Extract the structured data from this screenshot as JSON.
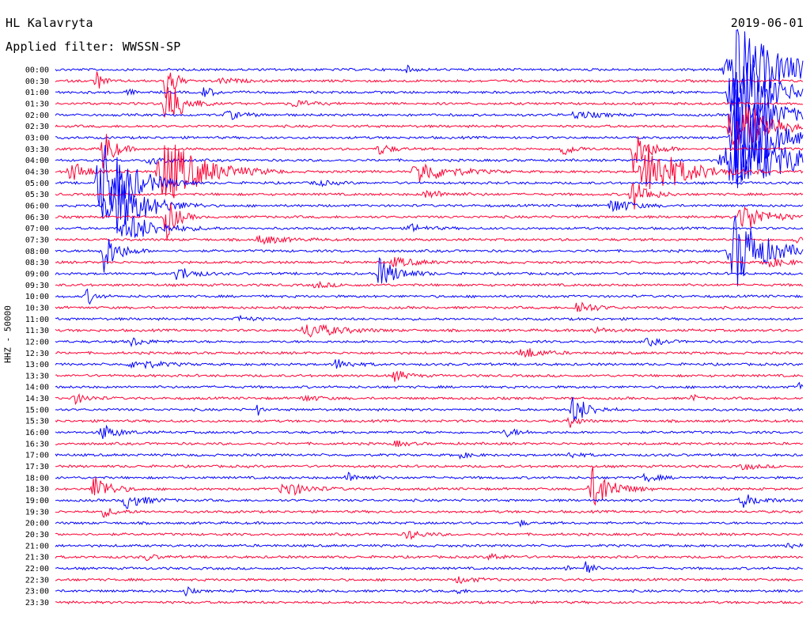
{
  "header": {
    "station": "HL Kalavryta",
    "filter": "Applied filter: WWSSN-SP",
    "date": "2019-06-01"
  },
  "channel_label": "HHZ - 50000",
  "colors": {
    "even": "#0000ff",
    "odd": "#ff0033"
  },
  "chart_data": {
    "type": "line",
    "title": "HL Kalavryta",
    "subtitle": "Applied filter: WWSSN-SP",
    "ylabel": "HHZ - 50000",
    "row_labels": [
      "00:00",
      "00:30",
      "01:00",
      "01:30",
      "02:00",
      "02:30",
      "03:00",
      "03:30",
      "04:00",
      "04:30",
      "05:00",
      "05:30",
      "06:00",
      "06:30",
      "07:00",
      "07:30",
      "08:00",
      "08:30",
      "09:00",
      "09:30",
      "10:00",
      "10:30",
      "11:00",
      "11:30",
      "12:00",
      "12:30",
      "13:00",
      "13:30",
      "14:00",
      "14:30",
      "15:00",
      "15:30",
      "16:00",
      "16:30",
      "17:00",
      "17:30",
      "18:00",
      "18:30",
      "19:00",
      "19:30",
      "20:00",
      "20:30",
      "21:00",
      "21:30",
      "22:00",
      "22:30",
      "23:00",
      "23:30"
    ],
    "grid": false,
    "series_colors": [
      "#0000ff",
      "#ff0033"
    ]
  }
}
